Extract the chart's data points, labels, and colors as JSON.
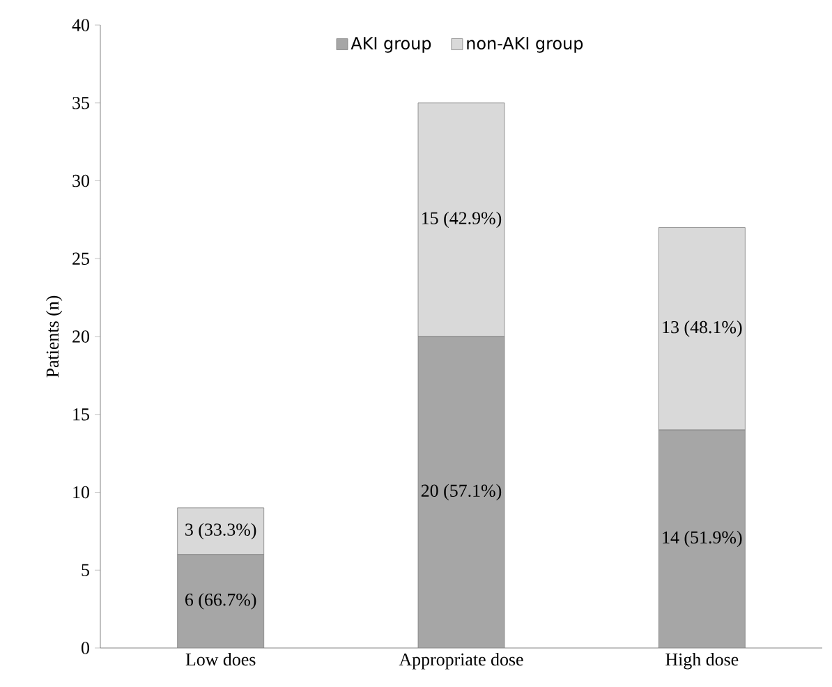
{
  "chart_data": {
    "type": "bar",
    "stacked": true,
    "ylabel": "Patients (n)",
    "categories": [
      "Low does",
      "Appropriate dose",
      "High dose"
    ],
    "series": [
      {
        "name": "AKI group",
        "color": "#a6a6a6",
        "values": [
          6,
          20,
          14
        ],
        "value_labels": [
          "6 (66.7%)",
          "20 (57.1%)",
          "14 (51.9%)"
        ]
      },
      {
        "name": "non-AKI group",
        "color": "#d9d9d9",
        "values": [
          3,
          15,
          13
        ],
        "value_labels": [
          "3 (33.3%)",
          "15 (42.9%)",
          "13 (48.1%)"
        ]
      }
    ],
    "ylim": [
      0,
      40
    ],
    "yticks": [
      0,
      5,
      10,
      15,
      20,
      25,
      30,
      35,
      40
    ],
    "legend": "top"
  }
}
